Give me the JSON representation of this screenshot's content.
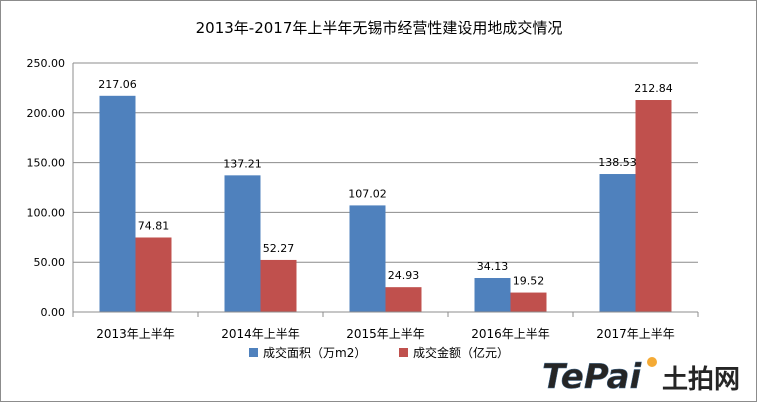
{
  "chart_data": {
    "type": "bar",
    "title": "2013年-2017年上半年无锡市经营性建设用地成交情况",
    "categories": [
      "2013年上半年",
      "2014年上半年",
      "2015年上半年",
      "2016年上半年",
      "2017年上半年"
    ],
    "series": [
      {
        "name": "成交面积（万m2）",
        "color": "#4f81bd",
        "values": [
          217.06,
          137.21,
          107.02,
          34.13,
          138.53
        ]
      },
      {
        "name": "成交金额（亿元）",
        "color": "#c0504d",
        "values": [
          74.81,
          52.27,
          24.93,
          19.52,
          212.84
        ]
      }
    ],
    "ylim": [
      0,
      250
    ],
    "yticks": [
      "0.00",
      "50.00",
      "100.00",
      "150.00",
      "200.00",
      "250.00"
    ],
    "grid": true,
    "legend_position": "bottom",
    "xlabel": "",
    "ylabel": ""
  },
  "logo": {
    "latin": "TePai",
    "chinese": "土拍网"
  }
}
